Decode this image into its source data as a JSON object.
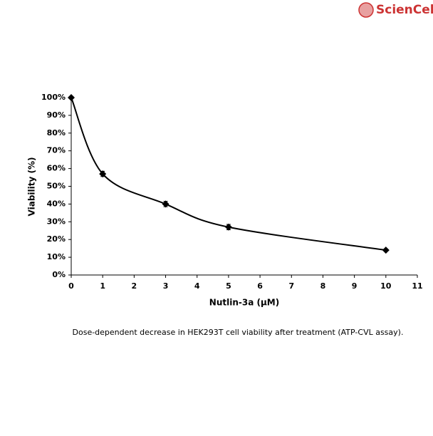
{
  "logo": "ScienCell",
  "chart_data": {
    "type": "line",
    "xlabel": "Nutlin-3a (μM)",
    "ylabel": "Viability (%)",
    "caption": "Dose-dependent decrease in HEK293T cell viability after treatment (ATP-CVL assay).",
    "x": [
      0,
      1,
      3,
      5,
      10
    ],
    "series": [
      {
        "name": "Viability",
        "color": "#000000",
        "values": [
          100,
          57,
          40,
          27,
          14
        ],
        "errors": [
          0,
          1.5,
          1.5,
          1.5,
          0
        ]
      }
    ],
    "xlim": [
      0,
      11
    ],
    "xticks": [
      0,
      1,
      2,
      3,
      4,
      5,
      6,
      7,
      8,
      9,
      10,
      11
    ],
    "ylim": [
      0,
      100
    ],
    "yticks": [
      {
        "value": 0,
        "label": "0%"
      },
      {
        "value": 10,
        "label": "10%"
      },
      {
        "value": 20,
        "label": "20%"
      },
      {
        "value": 30,
        "label": "30%"
      },
      {
        "value": 40,
        "label": "40%"
      },
      {
        "value": 50,
        "label": "50%"
      },
      {
        "value": 60,
        "label": "60%"
      },
      {
        "value": 70,
        "label": "70%"
      },
      {
        "value": 80,
        "label": "80%"
      },
      {
        "value": 90,
        "label": "90%"
      },
      {
        "value": 100,
        "label": "100%"
      }
    ],
    "grid": false
  }
}
